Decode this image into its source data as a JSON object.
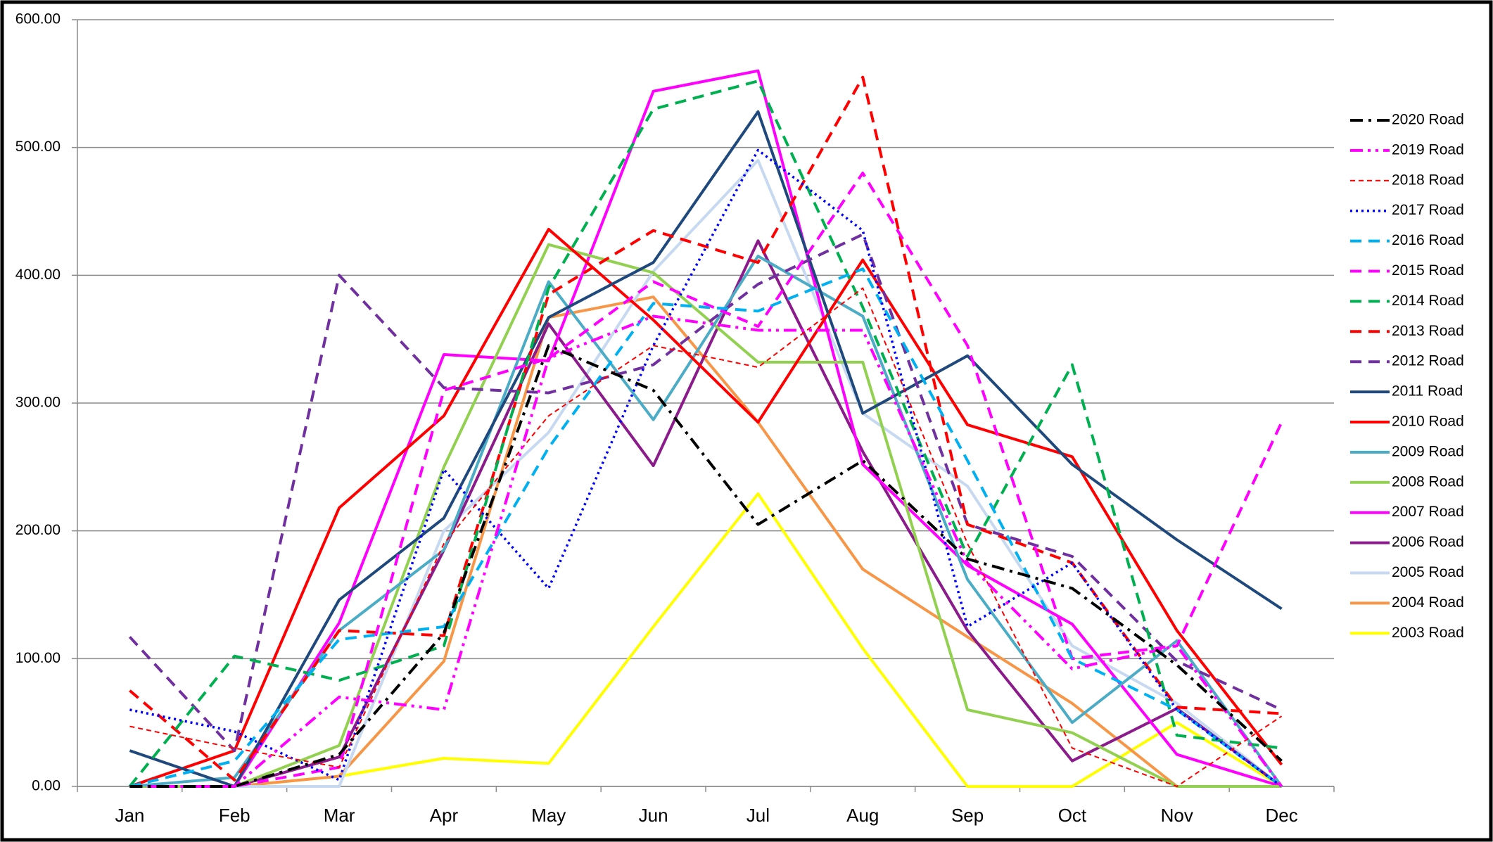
{
  "chart_data": {
    "type": "line",
    "categories": [
      "Jan",
      "Feb",
      "Mar",
      "Apr",
      "May",
      "Jun",
      "Jul",
      "Aug",
      "Sep",
      "Oct",
      "Nov",
      "Dec"
    ],
    "ylim": [
      0,
      600
    ],
    "yticks": [
      {
        "value": 0,
        "label": "0.00"
      },
      {
        "value": 100,
        "label": "100.00"
      },
      {
        "value": 200,
        "label": "200.00"
      },
      {
        "value": 300,
        "label": "300.00"
      },
      {
        "value": 400,
        "label": "400.00"
      },
      {
        "value": 500,
        "label": "500.00"
      },
      {
        "value": 600,
        "label": "600.00"
      }
    ],
    "grid": true,
    "legend": "right",
    "series": [
      {
        "name": "2020 Road",
        "color": "#000000",
        "style": "dash-dot",
        "values": [
          0,
          0,
          25,
          120,
          345,
          310,
          205,
          255,
          178,
          155,
          95,
          20
        ]
      },
      {
        "name": "2019 Road",
        "color": "#ff00ff",
        "style": "dash-dot-dot",
        "values": [
          0,
          0,
          70,
          60,
          335,
          368,
          357,
          357,
          175,
          92,
          110,
          0
        ]
      },
      {
        "name": "2018 Road",
        "color": "#ff0000",
        "style": "fine-dashed",
        "values": [
          47,
          30,
          15,
          190,
          290,
          345,
          328,
          390,
          190,
          30,
          0,
          55
        ]
      },
      {
        "name": "2017 Road",
        "color": "#0000ff",
        "style": "dotted",
        "values": [
          60,
          43,
          5,
          248,
          155,
          345,
          498,
          435,
          125,
          175,
          60,
          0
        ]
      },
      {
        "name": "2016 Road",
        "color": "#00b0f0",
        "style": "dashed",
        "values": [
          0,
          20,
          115,
          125,
          265,
          378,
          372,
          405,
          255,
          100,
          60,
          0
        ]
      },
      {
        "name": "2015 Road",
        "color": "#ff00ff",
        "style": "dashed",
        "values": [
          0,
          0,
          15,
          310,
          335,
          395,
          360,
          480,
          345,
          100,
          110,
          285
        ]
      },
      {
        "name": "2014 Road",
        "color": "#00b050",
        "style": "dashed",
        "values": [
          0,
          102,
          83,
          110,
          390,
          530,
          552,
          375,
          180,
          330,
          40,
          30
        ]
      },
      {
        "name": "2013 Road",
        "color": "#ff0000",
        "style": "dashed",
        "values": [
          75,
          5,
          122,
          118,
          385,
          435,
          410,
          555,
          205,
          175,
          62,
          57
        ]
      },
      {
        "name": "2012 Road",
        "color": "#7030a0",
        "style": "dashed",
        "values": [
          117,
          28,
          400,
          312,
          308,
          330,
          393,
          432,
          205,
          180,
          98,
          60
        ]
      },
      {
        "name": "2011 Road",
        "color": "#1f497d",
        "style": "solid",
        "values": [
          28,
          0,
          146,
          210,
          367,
          410,
          528,
          292,
          337,
          252,
          193,
          139
        ]
      },
      {
        "name": "2010 Road",
        "color": "#ff0000",
        "style": "solid",
        "values": [
          0,
          28,
          218,
          290,
          436,
          365,
          285,
          412,
          283,
          258,
          122,
          17
        ]
      },
      {
        "name": "2009 Road",
        "color": "#4bacc6",
        "style": "solid",
        "values": [
          0,
          7,
          122,
          185,
          395,
          287,
          415,
          368,
          162,
          50,
          114,
          0
        ]
      },
      {
        "name": "2008 Road",
        "color": "#92d050",
        "style": "solid",
        "values": [
          0,
          0,
          32,
          250,
          424,
          402,
          332,
          332,
          60,
          42,
          0,
          0
        ]
      },
      {
        "name": "2007 Road",
        "color": "#ff00ff",
        "style": "solid",
        "values": [
          0,
          0,
          128,
          338,
          333,
          544,
          560,
          252,
          173,
          127,
          25,
          0
        ]
      },
      {
        "name": "2006 Road",
        "color": "#8b1a8b",
        "style": "solid",
        "values": [
          0,
          0,
          23,
          185,
          362,
          251,
          427,
          262,
          122,
          20,
          61,
          0
        ]
      },
      {
        "name": "2005 Road",
        "color": "#c6d9f1",
        "style": "solid",
        "values": [
          0,
          0,
          0,
          200,
          277,
          403,
          490,
          292,
          235,
          110,
          65,
          0
        ]
      },
      {
        "name": "2004 Road",
        "color": "#f79646",
        "style": "solid",
        "values": [
          0,
          0,
          8,
          98,
          367,
          383,
          285,
          170,
          117,
          65,
          0,
          0
        ]
      },
      {
        "name": "2003 Road",
        "color": "#ffff00",
        "style": "solid",
        "values": [
          0,
          0,
          8,
          22,
          18,
          125,
          229,
          108,
          0,
          0,
          50,
          0
        ]
      }
    ]
  }
}
